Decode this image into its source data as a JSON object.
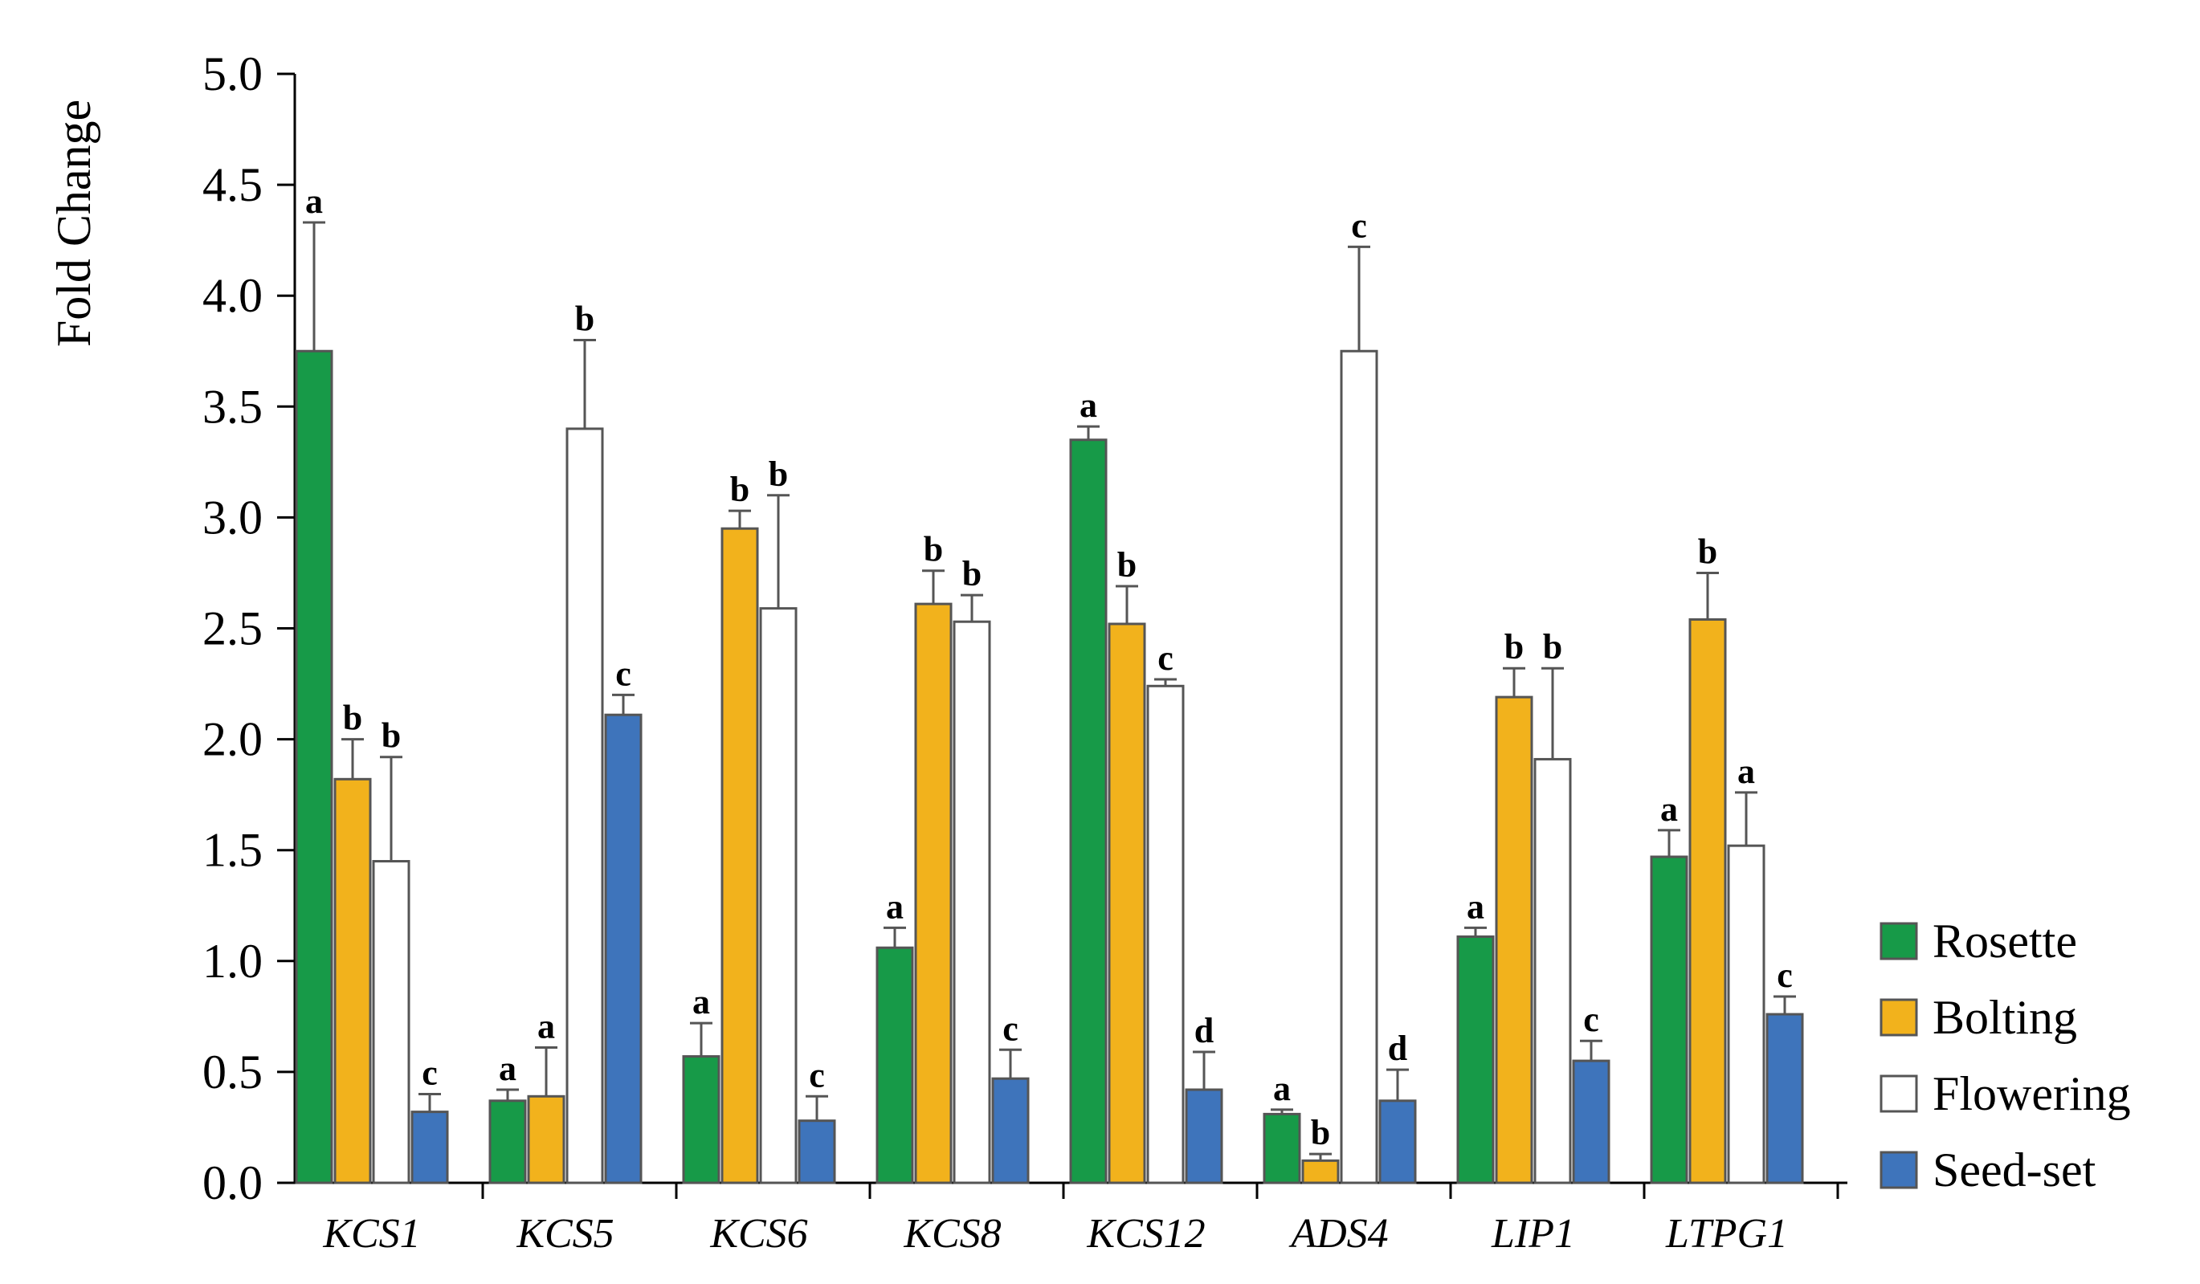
{
  "chart_data": {
    "type": "bar",
    "title": "",
    "xlabel": "",
    "ylabel": "Fold Change",
    "ylim": [
      0,
      5
    ],
    "yticks": [
      "0.0",
      "0.5",
      "1.0",
      "1.5",
      "2.0",
      "2.5",
      "3.0",
      "3.5",
      "4.0",
      "4.5",
      "5.0"
    ],
    "categories": [
      "KCS1",
      "KCS5",
      "KCS6",
      "KCS8",
      "KCS12",
      "ADS4",
      "LIP1",
      "LTPG1"
    ],
    "legend_position": "right",
    "series": [
      {
        "name": "Rosette",
        "color": "#179a48",
        "values": [
          3.75,
          0.37,
          0.57,
          1.06,
          3.35,
          0.31,
          1.11,
          1.47
        ],
        "errors": [
          0.58,
          0.05,
          0.15,
          0.09,
          0.06,
          0.02,
          0.04,
          0.12
        ],
        "labels": [
          "a",
          "a",
          "a",
          "a",
          "a",
          "a",
          "a",
          "a"
        ]
      },
      {
        "name": "Bolting",
        "color": "#f2b21c",
        "values": [
          1.82,
          0.39,
          2.95,
          2.61,
          2.52,
          0.1,
          2.19,
          2.54
        ],
        "errors": [
          0.18,
          0.22,
          0.08,
          0.15,
          0.17,
          0.03,
          0.13,
          0.21
        ],
        "labels": [
          "b",
          "a",
          "b",
          "b",
          "b",
          "b",
          "b",
          "b"
        ]
      },
      {
        "name": "Flowering",
        "color": "#ffffff",
        "values": [
          1.45,
          3.4,
          2.59,
          2.53,
          2.24,
          3.75,
          1.91,
          1.52
        ],
        "errors": [
          0.47,
          0.4,
          0.51,
          0.12,
          0.03,
          0.47,
          0.41,
          0.24
        ],
        "labels": [
          "b",
          "b",
          "b",
          "b",
          "c",
          "c",
          "b",
          "a"
        ]
      },
      {
        "name": "Seed-set",
        "color": "#3e74bb",
        "values": [
          0.32,
          2.11,
          0.28,
          0.47,
          0.42,
          0.37,
          0.55,
          0.76
        ],
        "errors": [
          0.08,
          0.09,
          0.11,
          0.13,
          0.17,
          0.14,
          0.09,
          0.08
        ],
        "labels": [
          "c",
          "c",
          "c",
          "c",
          "d",
          "d",
          "c",
          "c"
        ]
      }
    ]
  }
}
